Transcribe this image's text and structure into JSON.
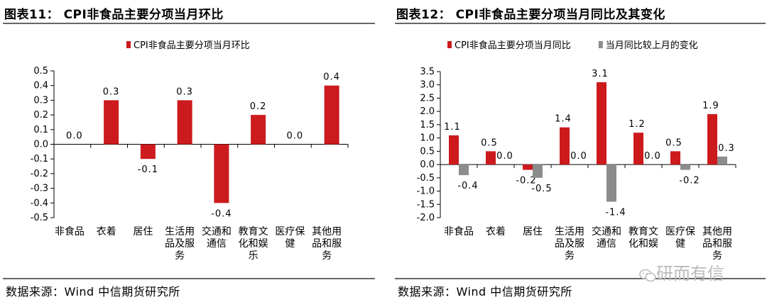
{
  "left": {
    "title": "图表11： CPI非食品主要分项当月环比",
    "source": "数据来源：Wind 中信期货研究所"
  },
  "right": {
    "title": "图表12： CPI非食品主要分项当月同比及其变化",
    "source": "数据来源：Wind 中信期货研究所"
  },
  "watermark": "研而有信",
  "colors": {
    "red": "#cc1a1d",
    "gray": "#8c8c8c",
    "rule": "#666666"
  },
  "chart_data": [
    {
      "type": "bar",
      "categories": [
        [
          "非食品"
        ],
        [
          "衣着"
        ],
        [
          "居住"
        ],
        [
          "生活用",
          "品及服",
          "务"
        ],
        [
          "交通和",
          "通信"
        ],
        [
          "教育文",
          "化和娱",
          "乐"
        ],
        [
          "医疗保",
          "健"
        ],
        [
          "其他用",
          "品和服",
          "务"
        ]
      ],
      "series": [
        {
          "name": "CPI非食品主要分项当月环比",
          "color": "#cc1a1d",
          "values": [
            0.0,
            0.3,
            -0.1,
            0.3,
            -0.4,
            0.2,
            0.0,
            0.4
          ],
          "labels": [
            "0.0",
            "0.3",
            "-0.1",
            "0.3",
            "-0.4",
            "0.2",
            "0.0",
            "0.4"
          ]
        }
      ],
      "ylim": [
        -0.5,
        0.5
      ],
      "yticks": [
        "0.5",
        "0.4",
        "0.3",
        "0.2",
        "0.1",
        "0.0",
        "-0.1",
        "-0.2",
        "-0.3",
        "-0.4",
        "-0.5"
      ],
      "legend": "top-center"
    },
    {
      "type": "bar",
      "categories": [
        [
          "非食品"
        ],
        [
          "衣着"
        ],
        [
          "居住"
        ],
        [
          "生活用",
          "品及服",
          "务"
        ],
        [
          "交通和",
          "通信"
        ],
        [
          "教育文",
          "化和娱"
        ],
        [
          "医疗保",
          "健"
        ],
        [
          "其他用",
          "品和服",
          "务"
        ]
      ],
      "series": [
        {
          "name": "CPI非食品主要分项当月同比",
          "color": "#cc1a1d",
          "values": [
            1.1,
            0.5,
            -0.2,
            1.4,
            3.1,
            1.2,
            0.5,
            1.9
          ],
          "labels": [
            "1.1",
            "0.5",
            "-0.2",
            "1.4",
            "3.1",
            "1.2",
            "0.5",
            "1.9"
          ]
        },
        {
          "name": "当月同比较上月的变化",
          "color": "#8c8c8c",
          "values": [
            -0.4,
            0.0,
            -0.5,
            0.0,
            -1.4,
            0.0,
            -0.2,
            0.3
          ],
          "labels": [
            "-0.4",
            "0.0",
            "-0.5",
            "0.0",
            "-1.4",
            "0.0",
            "-0.2",
            "0.3"
          ]
        }
      ],
      "ylim": [
        -2.0,
        3.5
      ],
      "yticks": [
        "3.5",
        "3.0",
        "2.5",
        "2.0",
        "1.5",
        "1.0",
        "0.5",
        "0.0",
        "-0.5",
        "-1.0",
        "-1.5",
        "-2.0"
      ],
      "legend": "top"
    }
  ]
}
